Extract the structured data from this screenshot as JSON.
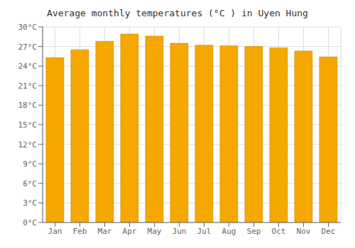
{
  "chart_data": {
    "type": "bar",
    "title": "Average monthly temperatures (°C ) in Uyen Hung",
    "categories": [
      "Jan",
      "Feb",
      "Mar",
      "Apr",
      "May",
      "Jun",
      "Jul",
      "Aug",
      "Sep",
      "Oct",
      "Nov",
      "Dec"
    ],
    "values": [
      25.3,
      26.5,
      27.8,
      28.9,
      28.6,
      27.5,
      27.2,
      27.1,
      27.0,
      26.8,
      26.3,
      25.4
    ],
    "color": "#F5A800",
    "ylim": [
      0,
      30
    ],
    "yticks": [
      {
        "value": 0,
        "label": "0°C"
      },
      {
        "value": 3,
        "label": "3°C"
      },
      {
        "value": 6,
        "label": "6°C"
      },
      {
        "value": 9,
        "label": "9°C"
      },
      {
        "value": 12,
        "label": "12°C"
      },
      {
        "value": 15,
        "label": "15°C"
      },
      {
        "value": 18,
        "label": "18°C"
      },
      {
        "value": 21,
        "label": "21°C"
      },
      {
        "value": 24,
        "label": "24°C"
      },
      {
        "value": 27,
        "label": "27°C"
      },
      {
        "value": 30,
        "label": "30°C"
      }
    ],
    "grid": true
  }
}
